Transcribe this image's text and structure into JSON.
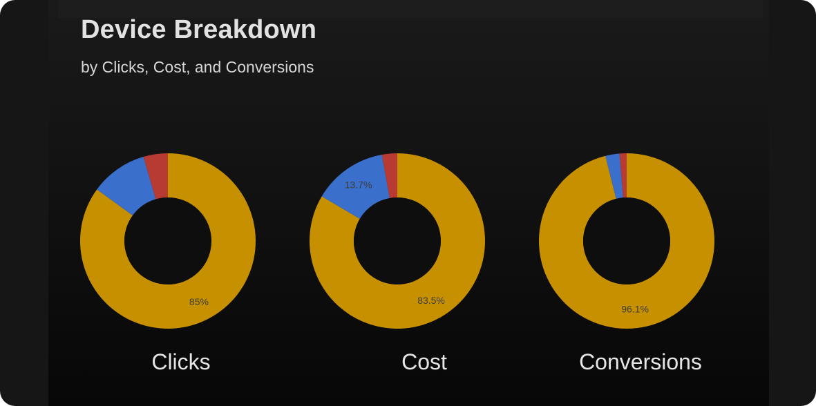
{
  "header": {
    "title": "Device Breakdown",
    "subtitle": "by Clicks, Cost, and Conversions"
  },
  "colors": {
    "primary": "#c69000",
    "secondary": "#3a6fcb",
    "tertiary": "#b83b33",
    "background": "#121212"
  },
  "chart_data": [
    {
      "type": "pie",
      "title": "Clicks",
      "slices": [
        {
          "value": 85.0,
          "label": "85%",
          "color": "#c69000"
        },
        {
          "value": 10.5,
          "label": "",
          "color": "#3a6fcb"
        },
        {
          "value": 4.5,
          "label": "",
          "color": "#b83b33"
        }
      ]
    },
    {
      "type": "pie",
      "title": "Cost",
      "slices": [
        {
          "value": 83.5,
          "label": "83.5%",
          "color": "#c69000"
        },
        {
          "value": 13.7,
          "label": "13.7%",
          "color": "#3a6fcb"
        },
        {
          "value": 2.8,
          "label": "",
          "color": "#b83b33"
        }
      ]
    },
    {
      "type": "pie",
      "title": "Conversions",
      "slices": [
        {
          "value": 96.1,
          "label": "96.1%",
          "color": "#c69000"
        },
        {
          "value": 2.6,
          "label": "",
          "color": "#3a6fcb"
        },
        {
          "value": 1.3,
          "label": "",
          "color": "#b83b33"
        }
      ]
    }
  ]
}
